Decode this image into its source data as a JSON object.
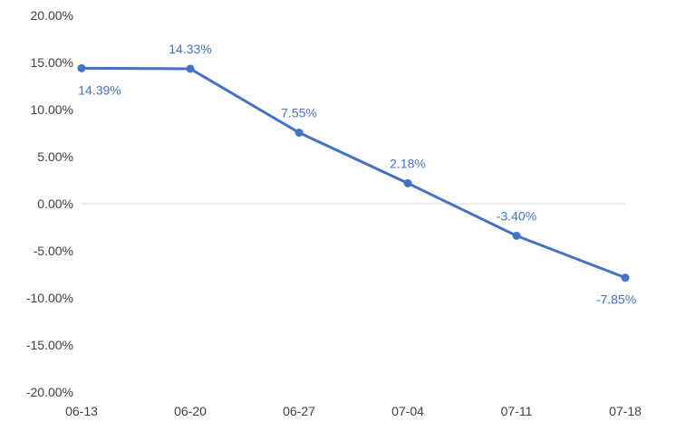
{
  "chart_data": {
    "type": "line",
    "title": "",
    "xlabel": "",
    "ylabel": "",
    "categories": [
      "06-13",
      "06-20",
      "06-27",
      "07-04",
      "07-11",
      "07-18"
    ],
    "series": [
      {
        "values": [
          14.39,
          14.33,
          7.55,
          2.18,
          -3.4,
          -7.85
        ],
        "data_labels": [
          "14.39%",
          "14.33%",
          "7.55%",
          "2.18%",
          "-3.40%",
          "-7.85%"
        ],
        "color": "#4472C4"
      }
    ],
    "ylim": [
      -20,
      20
    ],
    "y_ticks": [
      20,
      15,
      10,
      5,
      0,
      -5,
      -10,
      -15,
      -20
    ],
    "y_tick_labels": [
      "20.00%",
      "15.00%",
      "10.00%",
      "5.00%",
      "0.00%",
      "-5.00%",
      "-10.00%",
      "-15.00%",
      "-20.00%"
    ],
    "grid": false,
    "zero_line": true,
    "legend": "none",
    "colors": {
      "line": "#4472C4",
      "label": "#4472C4",
      "tick": "#404040",
      "zero_line": "#d9d9d9"
    }
  }
}
